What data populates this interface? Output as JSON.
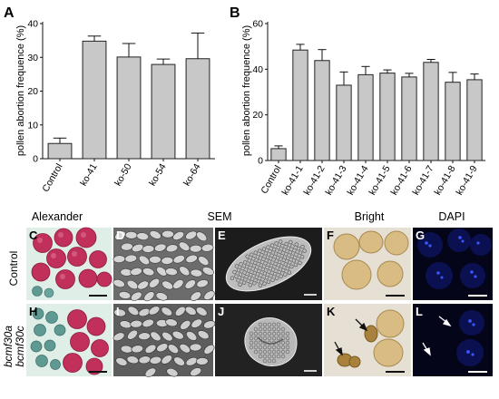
{
  "panels": {
    "A": "A",
    "B": "B",
    "C": "C",
    "D": "D",
    "E": "E",
    "F": "F",
    "G": "G",
    "H": "H",
    "I": "I",
    "J": "J",
    "K": "K",
    "L": "L"
  },
  "column_headers": {
    "alexander": "Alexander",
    "sem": "SEM",
    "bright": "Bright",
    "dapi": "DAPI"
  },
  "row_labels": {
    "control": "Control",
    "mutant_line1": "bcmf30a",
    "mutant_line2": "bcmf30c"
  },
  "colors": {
    "bar_fill": "#c8c8c8",
    "bar_stroke": "#222222",
    "alexander_bg": "#dfeee6",
    "aborted_green": "#5e9a92",
    "viable_magenta": "#c1305b",
    "sem_bg": "#6c6c6c",
    "bright_bg": "#e6e0d4",
    "pollen_tan": "#d9bc84",
    "dapi_bg": "#05051a",
    "dapi_blue": "#3a56ff"
  },
  "chart_data": [
    {
      "type": "bar",
      "panel": "A",
      "title": "",
      "xlabel": "",
      "ylabel": "pollen abortion frequence (%)",
      "ylim": [
        0,
        40
      ],
      "yticks": [
        0,
        10,
        20,
        30,
        40
      ],
      "categories": [
        "Control",
        "ko-41",
        "ko-50",
        "ko-54",
        "ko-64"
      ],
      "values": [
        4.5,
        34.8,
        30.1,
        27.9,
        29.6
      ],
      "errors": [
        1.6,
        1.5,
        4.0,
        1.6,
        7.6
      ],
      "grid": false
    },
    {
      "type": "bar",
      "panel": "B",
      "title": "",
      "xlabel": "",
      "ylabel": "pollen abortion frequence (%)",
      "ylim": [
        0,
        60
      ],
      "yticks": [
        0,
        20,
        40,
        60
      ],
      "categories": [
        "Control",
        "ko-41-1",
        "ko-41-2",
        "ko-41-3",
        "ko-41-4",
        "ko-41-5",
        "ko-41-6",
        "ko-41-7",
        "ko-41-8",
        "ko-41-9"
      ],
      "values": [
        5.2,
        48.4,
        43.8,
        33.0,
        37.6,
        38.3,
        36.6,
        43.0,
        34.3,
        35.4
      ],
      "errors": [
        1.2,
        2.5,
        4.8,
        5.8,
        3.6,
        1.4,
        1.6,
        1.3,
        4.3,
        2.5
      ],
      "grid": false
    }
  ]
}
